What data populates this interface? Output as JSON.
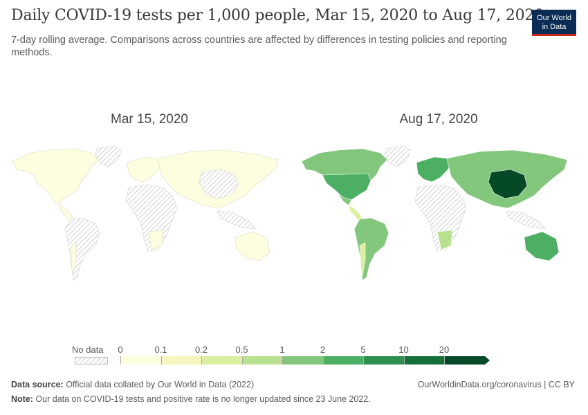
{
  "header": {
    "title": "Daily COVID-19 tests per 1,000 people, Mar 15, 2020 to Aug 17, 2020",
    "subtitle": "7-day rolling average. Comparisons across countries are affected by differences in testing policies and reporting methods.",
    "logo_line1": "Our World",
    "logo_line2": "in Data"
  },
  "maps": [
    {
      "title": "Mar 15, 2020"
    },
    {
      "title": "Aug 17, 2020"
    }
  ],
  "legend": {
    "no_data_label": "No data",
    "ticks": [
      "0",
      "0.1",
      "0.2",
      "0.5",
      "1",
      "2",
      "5",
      "10",
      "20"
    ],
    "colors": [
      "#fdfde0",
      "#f4f7bd",
      "#dceea1",
      "#b8e08e",
      "#83c77d",
      "#4caf63",
      "#2e8f4e",
      "#157039",
      "#054927"
    ],
    "no_data_color": "#e6e6e6"
  },
  "footer": {
    "source_label": "Data source:",
    "source_text": " Official data collated by Our World in Data (2022)",
    "url": "OurWorldinData.org/coronavirus | CC BY",
    "note_label": "Note:",
    "note_text": " Our data on COVID-19 tests and positive rate is no longer updated since 23 June 2022."
  }
}
